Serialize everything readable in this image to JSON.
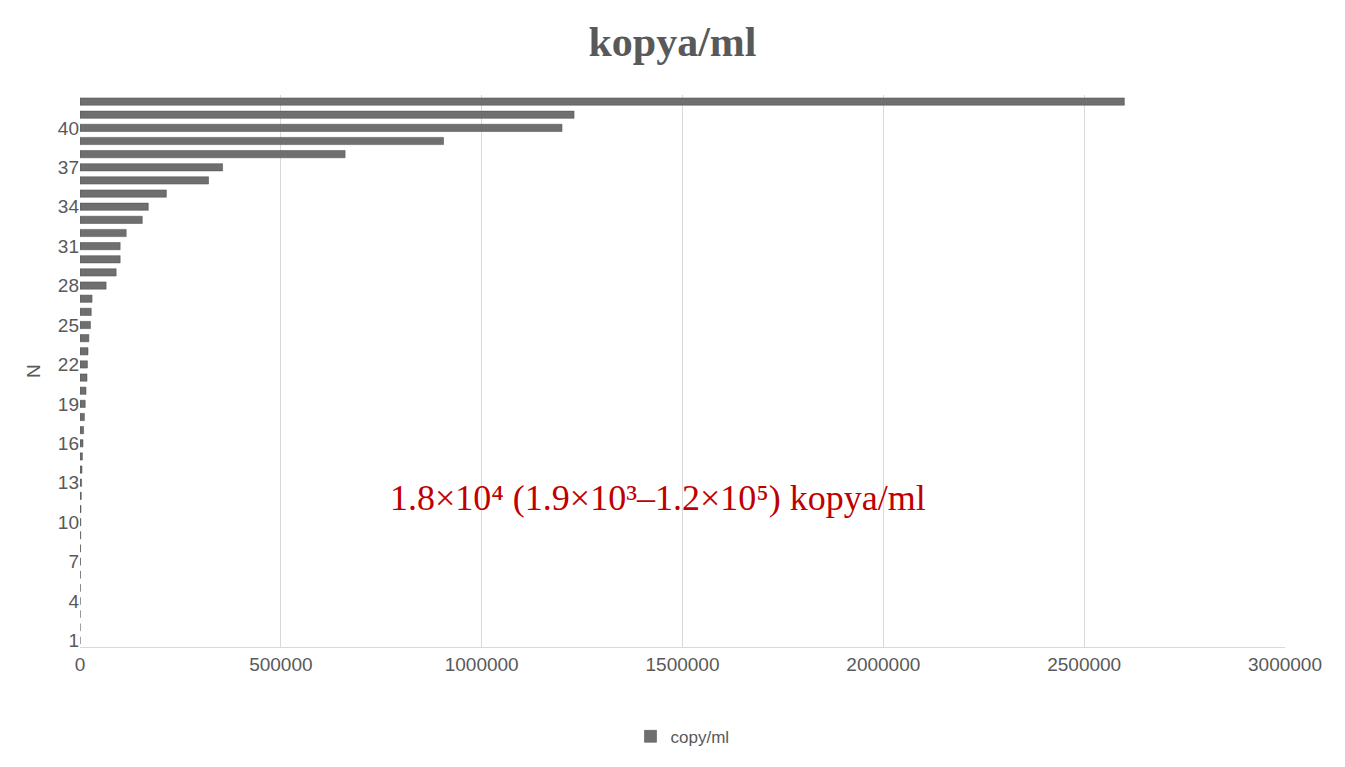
{
  "chart_data": {
    "type": "bar",
    "orientation": "horizontal",
    "title": "kopya/ml",
    "ylabel": "N",
    "categories": [
      "1",
      null,
      null,
      "4",
      null,
      null,
      "7",
      null,
      null,
      "10",
      null,
      null,
      "13",
      null,
      null,
      "16",
      null,
      null,
      "19",
      null,
      null,
      "22",
      null,
      null,
      "25",
      null,
      null,
      "28",
      null,
      null,
      "31",
      null,
      null,
      "34",
      null,
      null,
      "37",
      null,
      null,
      "40",
      null,
      null
    ],
    "series": [
      {
        "name": "copy/ml",
        "color": "#6f6f6f",
        "values": [
          200,
          300,
          400,
          500,
          700,
          900,
          1100,
          1400,
          1700,
          2000,
          2500,
          3200,
          4000,
          5000,
          6000,
          7500,
          9000,
          11000,
          13000,
          15000,
          17500,
          18500,
          20000,
          22000,
          26000,
          28000,
          30000,
          65000,
          90000,
          100000,
          100000,
          115000,
          155000,
          170000,
          215000,
          320000,
          355000,
          660000,
          905000,
          1200000,
          1230000,
          2600000
        ]
      }
    ],
    "xlim": [
      0,
      3000000
    ],
    "xticks": [
      0,
      500000,
      1000000,
      1500000,
      2000000,
      2500000,
      3000000
    ],
    "grid": true,
    "legend": "bottom",
    "annotations": [
      "1.8×10⁴ (1.9×10³–1.2×10⁵) kopya/ml"
    ]
  }
}
